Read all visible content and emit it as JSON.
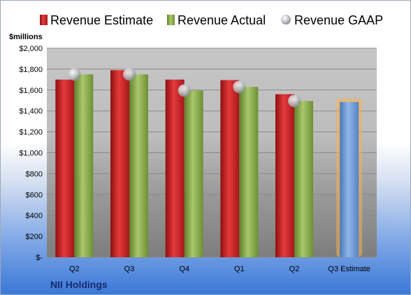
{
  "company": "NII Holdings",
  "chart_data": {
    "type": "bar",
    "ylabel": "$millions",
    "ylim": [
      0,
      2000
    ],
    "y_ticks": [
      0,
      200,
      400,
      600,
      800,
      1000,
      1200,
      1400,
      1600,
      1800,
      2000
    ],
    "y_tick_labels": [
      "$-",
      "$200",
      "$400",
      "$600",
      "$800",
      "$1,000",
      "$1,200",
      "$1,400",
      "$1,600",
      "$1,800",
      "$2,000"
    ],
    "categories": [
      "Q2",
      "Q3",
      "Q4",
      "Q1",
      "Q2",
      "Q3 Estimate"
    ],
    "series": [
      {
        "name": "Revenue Estimate",
        "kind": "bar",
        "color": "#cc1f22",
        "values": [
          1700,
          1790,
          1700,
          1695,
          1560,
          null
        ]
      },
      {
        "name": "Revenue Actual",
        "kind": "bar",
        "color": "#8fb04f",
        "values": [
          1750,
          1750,
          1595,
          1630,
          1495,
          null
        ]
      },
      {
        "name": "Revenue GAAP",
        "kind": "marker",
        "color": "#c0c4c8",
        "values": [
          1750,
          1750,
          1595,
          1630,
          1495,
          null
        ]
      },
      {
        "name": "Q3 Estimate",
        "kind": "bar",
        "color": "#6e9bd6",
        "glow": "#f7b04a",
        "values": [
          null,
          null,
          null,
          null,
          null,
          1485
        ]
      }
    ],
    "grid": true,
    "legend_position": "top"
  }
}
